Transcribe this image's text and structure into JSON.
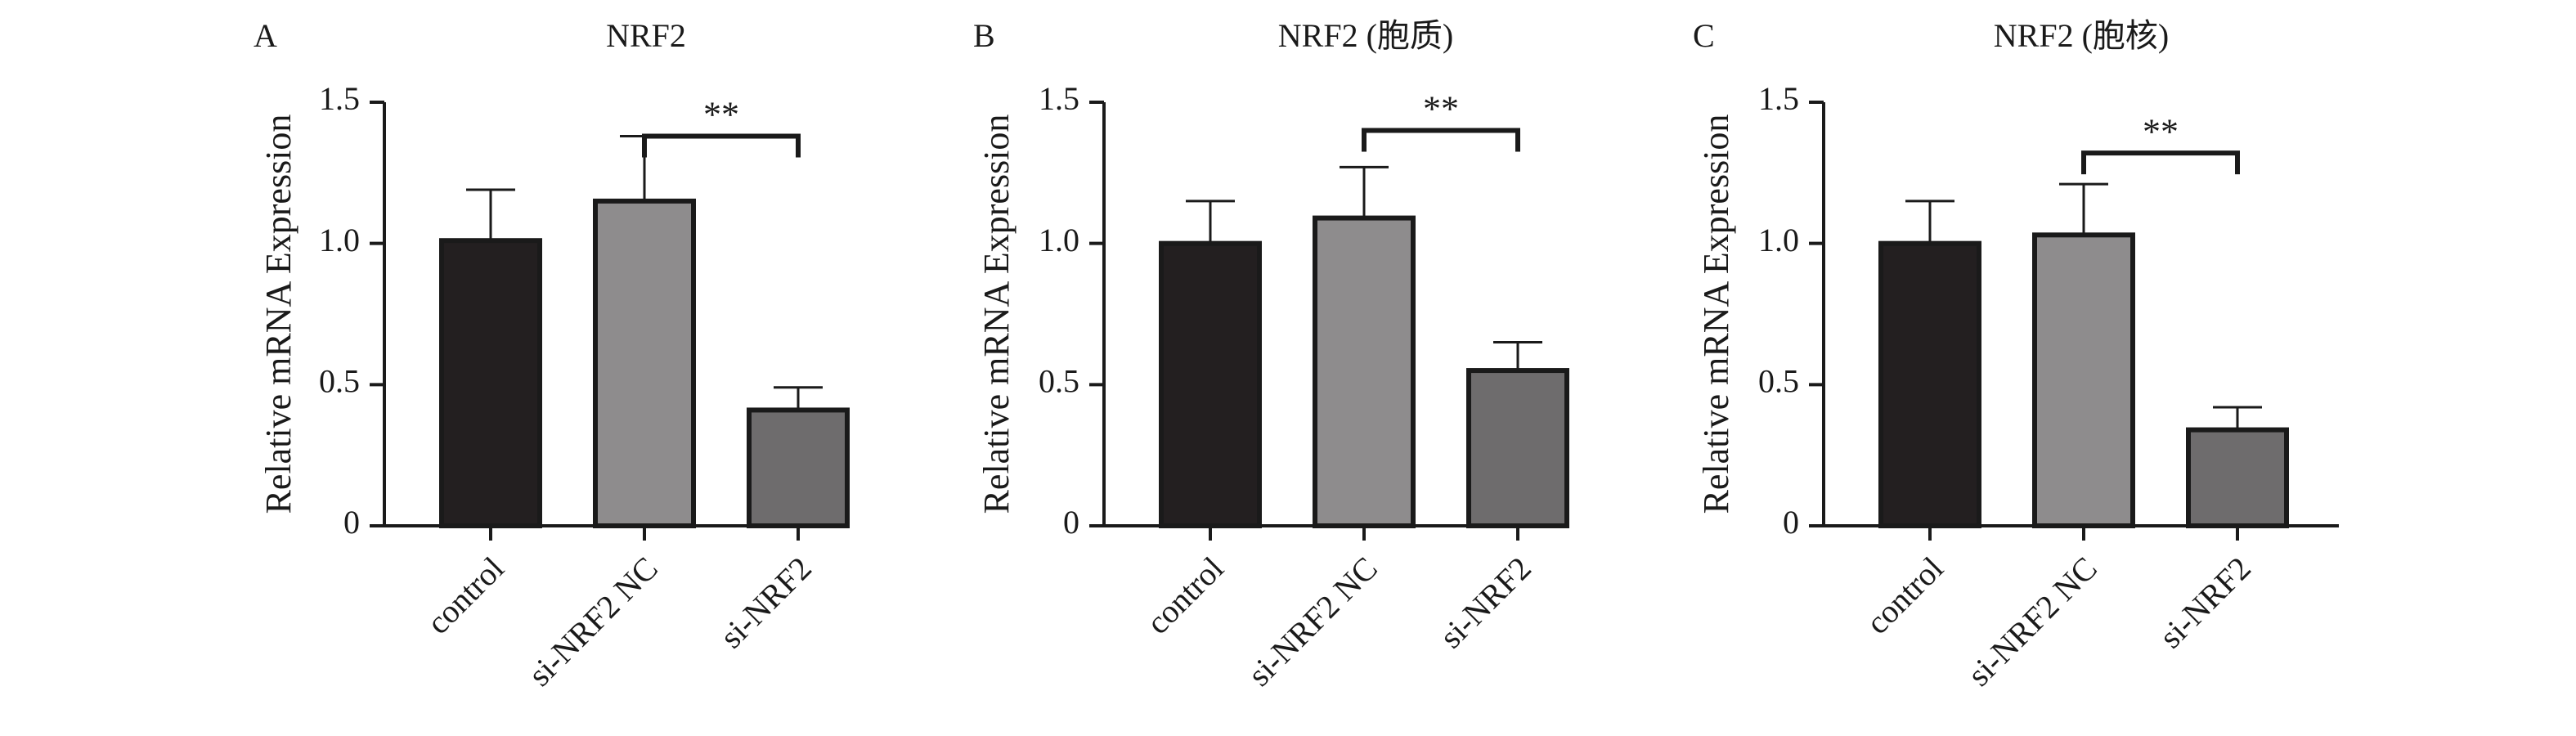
{
  "chart_data": [
    {
      "type": "bar",
      "panel": "A",
      "title": "NRF2",
      "ylabel": "Relative mRNA Expression",
      "xlabel": "",
      "categories": [
        "control",
        "si-NRF2 NC",
        "si-NRF2"
      ],
      "values": [
        1.01,
        1.15,
        0.41
      ],
      "errors": [
        0.18,
        0.23,
        0.08
      ],
      "ylim": [
        0,
        1.5
      ],
      "yticks": [
        0,
        0.5,
        1.0,
        1.5
      ],
      "ytick_labels": [
        "0",
        "0.5",
        "1.0",
        "1.5"
      ],
      "colors": [
        "#231f20",
        "#8e8c8d",
        "#6e6c6d"
      ],
      "significance": {
        "from": 1,
        "to": 2,
        "label": "**",
        "y": 1.38
      }
    },
    {
      "type": "bar",
      "panel": "B",
      "title": "NRF2 (胞质)",
      "ylabel": "Relative mRNA Expression",
      "xlabel": "",
      "categories": [
        "control",
        "si-NRF2 NC",
        "si-NRF2"
      ],
      "values": [
        1.0,
        1.09,
        0.55
      ],
      "errors": [
        0.15,
        0.18,
        0.1
      ],
      "ylim": [
        0,
        1.5
      ],
      "yticks": [
        0,
        0.5,
        1.0,
        1.5
      ],
      "ytick_labels": [
        "0",
        "0.5",
        "1.0",
        "1.5"
      ],
      "colors": [
        "#231f20",
        "#8e8c8d",
        "#6e6c6d"
      ],
      "significance": {
        "from": 1,
        "to": 2,
        "label": "**",
        "y": 1.4
      }
    },
    {
      "type": "bar",
      "panel": "C",
      "title": "NRF2 (胞核)",
      "ylabel": "Relative mRNA Expression",
      "xlabel": "",
      "categories": [
        "control",
        "si-NRF2 NC",
        "si-NRF2"
      ],
      "values": [
        1.0,
        1.03,
        0.34
      ],
      "errors": [
        0.15,
        0.18,
        0.08
      ],
      "ylim": [
        0,
        1.5
      ],
      "yticks": [
        0,
        0.5,
        1.0,
        1.5
      ],
      "ytick_labels": [
        "0",
        "0.5",
        "1.0",
        "1.5"
      ],
      "colors": [
        "#231f20",
        "#8e8c8d",
        "#6e6c6d"
      ],
      "significance": {
        "from": 1,
        "to": 2,
        "label": "**",
        "y": 1.32
      }
    }
  ]
}
